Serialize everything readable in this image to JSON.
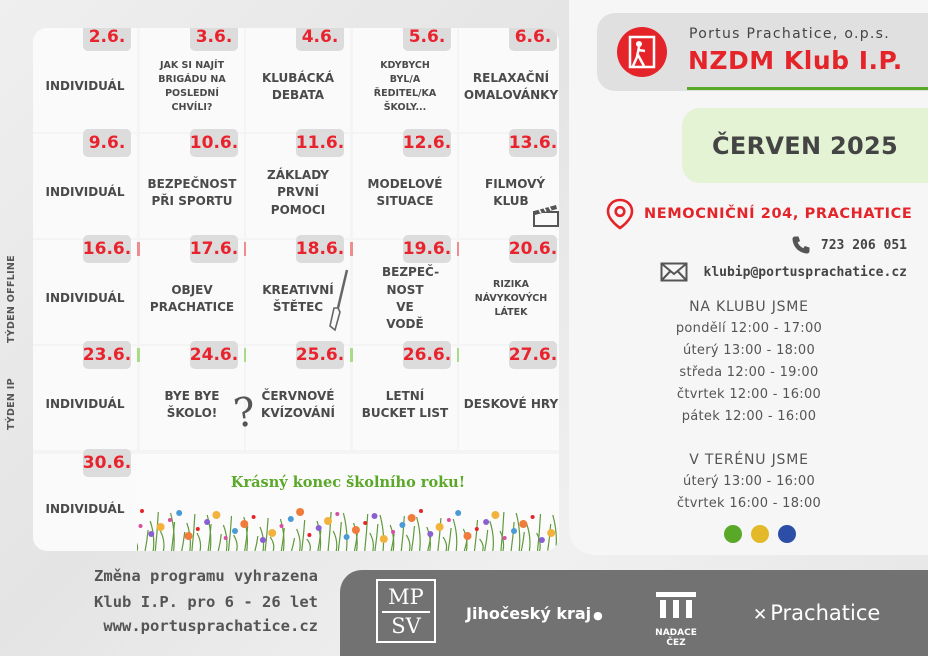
{
  "calendar": {
    "weeks": [
      {
        "days": [
          {
            "date": "2.6.",
            "label": "INDIVIDUÁL"
          },
          {
            "date": "3.6.",
            "label": "JAK SI NAJÍT BRIGÁDU NA POSLEDNÍ CHVÍLI?"
          },
          {
            "date": "4.6.",
            "label": "KLUBÁCKÁ DEBATA"
          },
          {
            "date": "5.6.",
            "label": "KDYBYCH BYL/A ŘEDITEL/KA ŠKOLY..."
          },
          {
            "date": "6.6.",
            "label": "RELAXAČNÍ OMALOVÁNKY"
          }
        ]
      },
      {
        "days": [
          {
            "date": "9.6.",
            "label": "INDIVIDUÁL"
          },
          {
            "date": "10.6.",
            "label": "BEZPEČNOST PŘI SPORTU"
          },
          {
            "date": "11.6.",
            "label": "ZÁKLADY PRVNÍ POMOCI"
          },
          {
            "date": "12.6.",
            "label": "MODELOVÉ SITUACE"
          },
          {
            "date": "13.6.",
            "label": "FILMOVÝ KLUB"
          }
        ]
      },
      {
        "days": [
          {
            "date": "16.6.",
            "label": "INDIVIDUÁL"
          },
          {
            "date": "17.6.",
            "label": "OBJEV PRACHATICE"
          },
          {
            "date": "18.6.",
            "label": "KREATIVNÍ ŠTĚTEC"
          },
          {
            "date": "19.6.",
            "label": "BEZPEČ-NOST VE VODĚ"
          },
          {
            "date": "20.6.",
            "label": "RIZIKA NÁVYKOVÝCH LÁTEK"
          }
        ]
      },
      {
        "days": [
          {
            "date": "23.6.",
            "label": "INDIVIDUÁL"
          },
          {
            "date": "24.6.",
            "label": "BYE BYE ŠKOLO!"
          },
          {
            "date": "25.6.",
            "label": "ČERVNOVÉ KVÍZOVÁNÍ"
          },
          {
            "date": "26.6.",
            "label": "LETNÍ BUCKET LIST"
          },
          {
            "date": "27.6.",
            "label": "DESKOVÉ HRY"
          }
        ]
      },
      {
        "days": [
          {
            "date": "30.6.",
            "label": "INDIVIDUÁL"
          }
        ]
      }
    ],
    "week_offline_label": "TÝDEN OFFLINE",
    "week_ip_label": "TÝDEN IP",
    "closing_message": "Krásný konec školního roku!"
  },
  "brand": {
    "org": "Portus Prachatice, o.p.s.",
    "name": "NZDM Klub I.P.",
    "accent": "#e5242a",
    "green": "#5aa827"
  },
  "month": "ČERVEN 2025",
  "contact": {
    "address": "NEMOCNIČNÍ 204, PRACHATICE",
    "phone": "723 206 051",
    "email": "klubip@portusprachatice.cz"
  },
  "hours": {
    "club_heading": "NA KLUBU JSME",
    "club": [
      "pondělí 12:00 - 17:00",
      "úterý 13:00 - 18:00",
      "středa 12:00 - 19:00",
      "čtvrtek 12:00 - 16:00",
      "pátek 12:00 - 16:00"
    ],
    "field_heading": "V TERÉNU JSME",
    "field": [
      "úterý 13:00 - 16:00",
      "čtvrtek 16:00 - 18:00"
    ]
  },
  "dots": [
    "#5aa827",
    "#e3b92a",
    "#2c4ea6"
  ],
  "footer": {
    "line1": "Změna programu vyhrazena",
    "line2": "Klub I.P. pro  6 - 26  let",
    "line3": "www.portusprachatice.cz"
  },
  "sponsors": {
    "mpsv_top": "MP",
    "mpsv_bottom": "SV",
    "kraj": "Jihočeský kraj",
    "cez": "NADACE ČEZ",
    "city": "Prachatice"
  }
}
